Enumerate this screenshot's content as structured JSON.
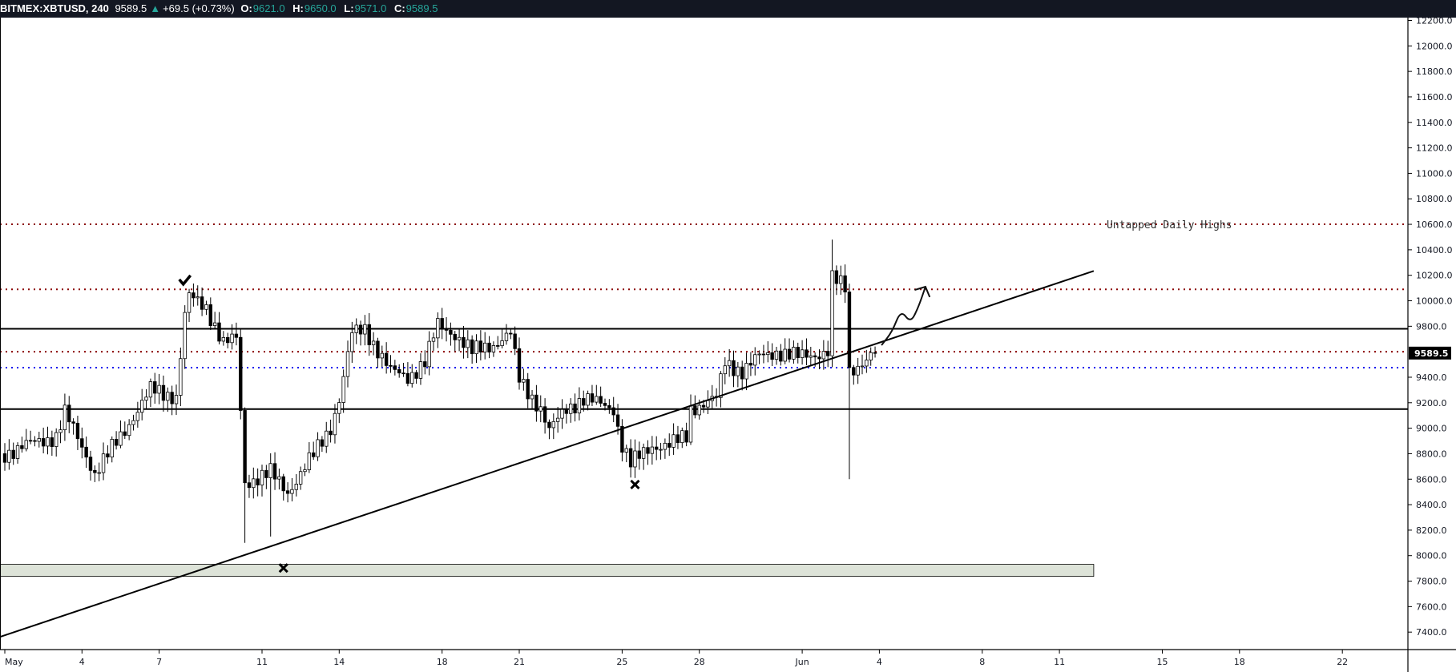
{
  "header": {
    "symbol": "BITMEX:XBTUSD, 240",
    "last": "9589.5",
    "change": "+69.5 (+0.73%)",
    "o_label": "O:",
    "o": "9621.0",
    "h_label": "H:",
    "h": "9650.0",
    "l_label": "L:",
    "l": "9571.0",
    "c_label": "C:",
    "c": "9589.5",
    "up_icon": "triangle-up-icon",
    "accent": "#26a69a"
  },
  "price_axis": {
    "ticks": [
      "12200.0",
      "12000.0",
      "11800.0",
      "11600.0",
      "11400.0",
      "11200.0",
      "11000.0",
      "10800.0",
      "10600.0",
      "10400.0",
      "10200.0",
      "10000.0",
      "9800.0",
      "9400.0",
      "9200.0",
      "9000.0",
      "8800.0",
      "8600.0",
      "8400.0",
      "8200.0",
      "8000.0",
      "7800.0",
      "7600.0",
      "7400.0"
    ],
    "current_price_label": "9589.5"
  },
  "time_axis": {
    "ticks": [
      {
        "t": "05-01 00",
        "label": "May"
      },
      {
        "t": "05-04 00",
        "label": "4"
      },
      {
        "t": "05-07 00",
        "label": "7"
      },
      {
        "t": "05-11 00",
        "label": "11"
      },
      {
        "t": "05-14 00",
        "label": "14"
      },
      {
        "t": "05-18 00",
        "label": "18"
      },
      {
        "t": "05-21 00",
        "label": "21"
      },
      {
        "t": "05-25 00",
        "label": "25"
      },
      {
        "t": "05-28 00",
        "label": "28"
      },
      {
        "t": "06-01 00",
        "label": "Jun"
      },
      {
        "t": "06-04 00",
        "label": "4"
      },
      {
        "t": "06-08 00",
        "label": "8"
      },
      {
        "t": "06-11 00",
        "label": "11"
      },
      {
        "t": "06-15 00",
        "label": "15"
      },
      {
        "t": "06-18 00",
        "label": "18"
      },
      {
        "t": "06-22 00",
        "label": "22"
      }
    ]
  },
  "chart_data": {
    "type": "candlestick",
    "interval": "240",
    "ylim": [
      7300,
      12250
    ],
    "colors": {
      "up_body": "#ffffff",
      "down_body": "#000000",
      "outline": "#000000"
    },
    "price_path": [
      [
        "05-01 00",
        8800
      ],
      [
        "05-01 20",
        8865
      ],
      [
        "05-03 00",
        8937
      ],
      [
        "05-03 08",
        9120
      ],
      [
        "05-04 04",
        8790
      ],
      [
        "05-04 12",
        8645
      ],
      [
        "05-05 12",
        8937
      ],
      [
        "05-06 16",
        9300
      ],
      [
        "05-07 16",
        9250
      ],
      [
        "05-08 00",
        9884
      ],
      [
        "05-08 04",
        10030
      ],
      [
        "05-08 20",
        9950
      ],
      [
        "05-09 12",
        9665
      ],
      [
        "05-10 00",
        9700
      ],
      [
        "05-10 08",
        8573
      ],
      [
        "05-11 08",
        8650
      ],
      [
        "05-12 00",
        8500
      ],
      [
        "05-13 00",
        8790
      ],
      [
        "05-13 16",
        9010
      ],
      [
        "05-14 00",
        9230
      ],
      [
        "05-14 12",
        9740
      ],
      [
        "05-15 00",
        9780
      ],
      [
        "05-16 00",
        9447
      ],
      [
        "05-16 16",
        9400
      ],
      [
        "05-17 08",
        9520
      ],
      [
        "05-17 20",
        9811
      ],
      [
        "05-18 12",
        9740
      ],
      [
        "05-19 04",
        9600
      ],
      [
        "05-20 00",
        9660
      ],
      [
        "05-20 16",
        9740
      ],
      [
        "05-21 00",
        9380
      ],
      [
        "05-21 20",
        9156
      ],
      [
        "05-22 04",
        8975
      ],
      [
        "05-22 20",
        9156
      ],
      [
        "05-23 12",
        9230
      ],
      [
        "05-24 16",
        9156
      ],
      [
        "05-25 00",
        8865
      ],
      [
        "05-25 08",
        8719
      ],
      [
        "05-26 04",
        8865
      ],
      [
        "05-26 20",
        8865
      ],
      [
        "05-27 12",
        8937
      ],
      [
        "05-27 16",
        9156
      ],
      [
        "05-28 16",
        9230
      ],
      [
        "05-29 00",
        9520
      ],
      [
        "05-29 16",
        9447
      ],
      [
        "05-30 08",
        9560
      ],
      [
        "05-31 00",
        9600
      ],
      [
        "05-31 20",
        9560
      ],
      [
        "06-02 00",
        9600
      ],
      [
        "06-02 04",
        10175
      ],
      [
        "06-02 16",
        10100
      ],
      [
        "06-02 20",
        9447
      ],
      [
        "06-03 08",
        9520
      ],
      [
        "06-03 20",
        9589.5
      ]
    ],
    "extremes": [
      {
        "t": "05-10 08",
        "low": 8100
      },
      {
        "t": "05-11 08",
        "low": 8150
      },
      {
        "t": "06-02 04",
        "high": 10480
      },
      {
        "t": "06-02 20",
        "low": 8600
      }
    ]
  },
  "drawings": {
    "hlines": [
      {
        "price": 10600,
        "color": "#8b0000",
        "style": "dotted"
      },
      {
        "price": 10090,
        "color": "#8b0000",
        "style": "dotted"
      },
      {
        "price": 9600,
        "color": "#8b0000",
        "style": "dotted"
      },
      {
        "price": 9475,
        "color": "#0000ee",
        "style": "dotted"
      },
      {
        "price": 9780,
        "color": "#000000",
        "style": "solid"
      },
      {
        "price": 9150,
        "color": "#000000",
        "style": "solid"
      }
    ],
    "trendline": [
      [
        "04-30 20",
        7364
      ],
      [
        "06-12 08",
        10234
      ]
    ],
    "zone": {
      "from": "04-30 20",
      "to": "06-12 08",
      "low": 7837,
      "high": 7932,
      "fill": "#dde3d8"
    },
    "note": {
      "t": "06-12 20",
      "price": 10600,
      "text": "Untapped Daily Highs"
    },
    "check_icon": {
      "t": "05-08 00",
      "price": 10161
    },
    "x_marks": [
      {
        "t": "05-11 20",
        "price": 7903
      },
      {
        "t": "05-25 12",
        "price": 8558
      }
    ],
    "projection_arrow": [
      [
        "06-04 02",
        9651
      ],
      [
        "06-04 12",
        9758
      ],
      [
        "06-04 20",
        9928
      ],
      [
        "06-05 05",
        9827
      ],
      [
        "06-05 12",
        9940
      ],
      [
        "06-05 19",
        10110
      ]
    ],
    "arrow_head": [
      [
        "06-05 09",
        10085
      ],
      [
        "06-05 19",
        10110
      ],
      [
        "06-05 23",
        10029
      ]
    ]
  }
}
